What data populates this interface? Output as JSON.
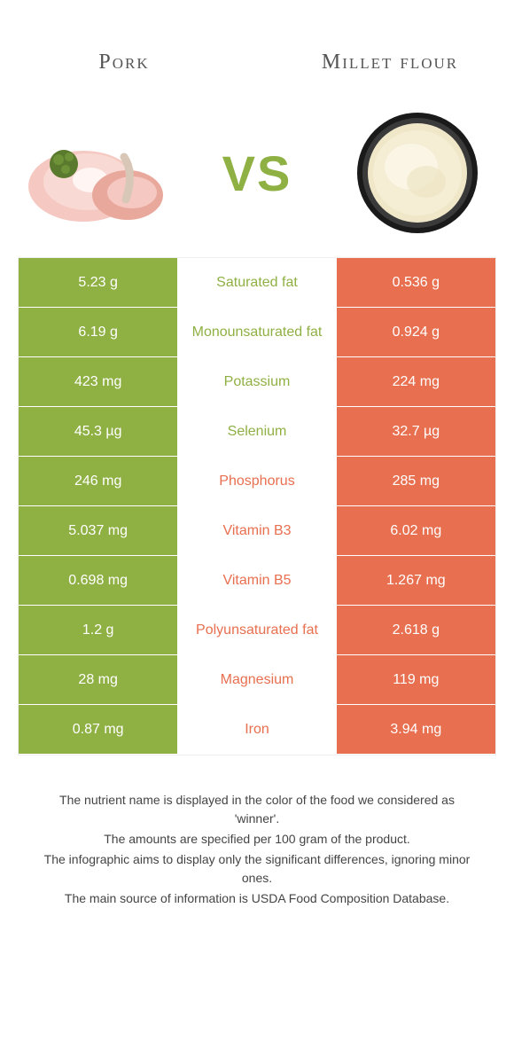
{
  "header": {
    "left_title": "Pork",
    "right_title": "Millet flour",
    "vs": "VS"
  },
  "colors": {
    "green": "#8fb043",
    "orange": "#e86f4f",
    "bg": "#ffffff"
  },
  "typography": {
    "title_fontsize": 24,
    "cell_fontsize": 16,
    "vs_fontsize": 56,
    "footer_fontsize": 14
  },
  "rows": [
    {
      "label": "Saturated fat",
      "left": "5.23 g",
      "right": "0.536 g",
      "winner": "left"
    },
    {
      "label": "Monounsaturated fat",
      "left": "6.19 g",
      "right": "0.924 g",
      "winner": "left"
    },
    {
      "label": "Potassium",
      "left": "423 mg",
      "right": "224 mg",
      "winner": "left"
    },
    {
      "label": "Selenium",
      "left": "45.3 µg",
      "right": "32.7 µg",
      "winner": "left"
    },
    {
      "label": "Phosphorus",
      "left": "246 mg",
      "right": "285 mg",
      "winner": "right"
    },
    {
      "label": "Vitamin B3",
      "left": "5.037 mg",
      "right": "6.02 mg",
      "winner": "right"
    },
    {
      "label": "Vitamin B5",
      "left": "0.698 mg",
      "right": "1.267 mg",
      "winner": "right"
    },
    {
      "label": "Polyunsaturated fat",
      "left": "1.2 g",
      "right": "2.618 g",
      "winner": "right"
    },
    {
      "label": "Magnesium",
      "left": "28 mg",
      "right": "119 mg",
      "winner": "right"
    },
    {
      "label": "Iron",
      "left": "0.87 mg",
      "right": "3.94 mg",
      "winner": "right"
    }
  ],
  "footer": {
    "l1": "The nutrient name is displayed in the color of the food we considered as 'winner'.",
    "l2": "The amounts are specified per 100 gram of the product.",
    "l3": "The infographic aims to display only the significant differences, ignoring minor ones.",
    "l4": "The main source of information is USDA Food Composition Database."
  }
}
